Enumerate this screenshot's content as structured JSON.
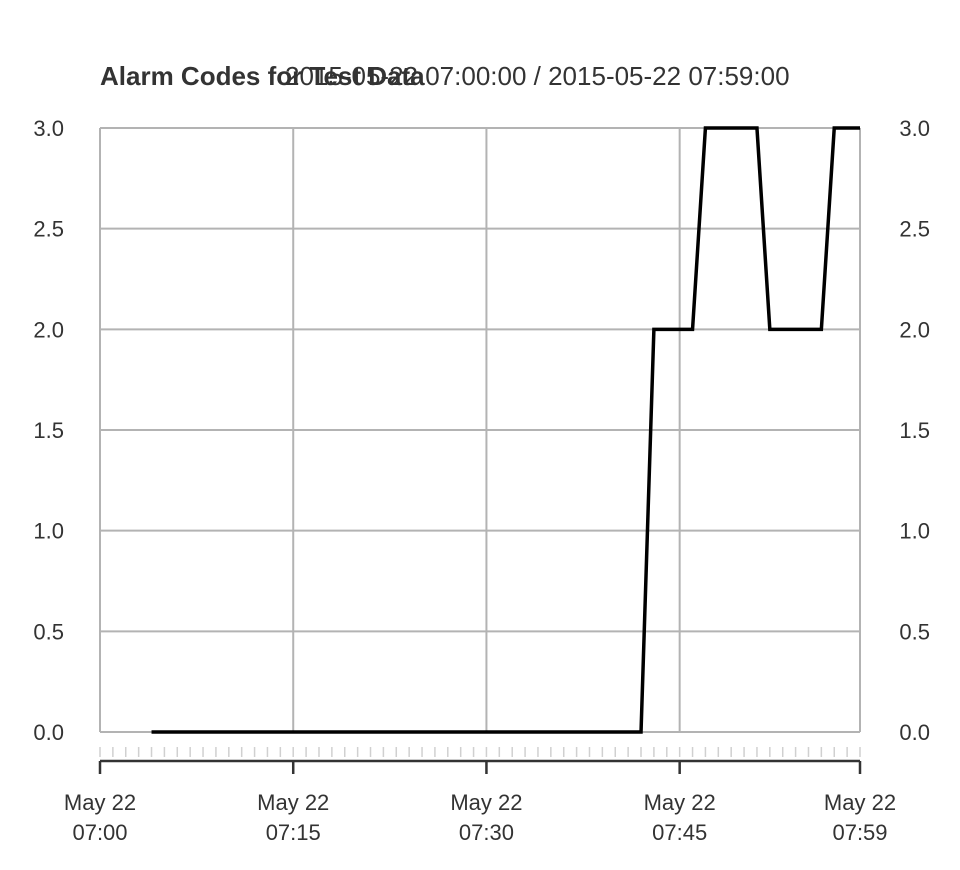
{
  "chart_data": {
    "type": "line",
    "title": "Alarm Codes for Test Data",
    "subtitle": "2015-05-22 07:00:00 / 2015-05-22 07:59:00",
    "xlabel": "",
    "ylabel": "",
    "grid": true,
    "ylim": [
      0,
      3
    ],
    "y_ticks": [
      "0.0",
      "0.5",
      "1.0",
      "1.5",
      "2.0",
      "2.5",
      "3.0"
    ],
    "x_ticks": [
      {
        "line1": "May 22",
        "line2": "07:00",
        "time": "07:00"
      },
      {
        "line1": "May 22",
        "line2": "07:15",
        "time": "07:15"
      },
      {
        "line1": "May 22",
        "line2": "07:30",
        "time": "07:30"
      },
      {
        "line1": "May 22",
        "line2": "07:45",
        "time": "07:45"
      },
      {
        "line1": "May 22",
        "line2": "07:59",
        "time": "07:59"
      }
    ],
    "series": [
      {
        "color": "#000000",
        "points": [
          [
            "07:04",
            0
          ],
          [
            "07:42",
            0
          ],
          [
            "07:43",
            2
          ],
          [
            "07:46",
            2
          ],
          [
            "07:47",
            3
          ],
          [
            "07:51",
            3
          ],
          [
            "07:52",
            2
          ],
          [
            "07:56",
            2
          ],
          [
            "07:57",
            3
          ],
          [
            "07:59",
            3
          ]
        ]
      }
    ]
  }
}
